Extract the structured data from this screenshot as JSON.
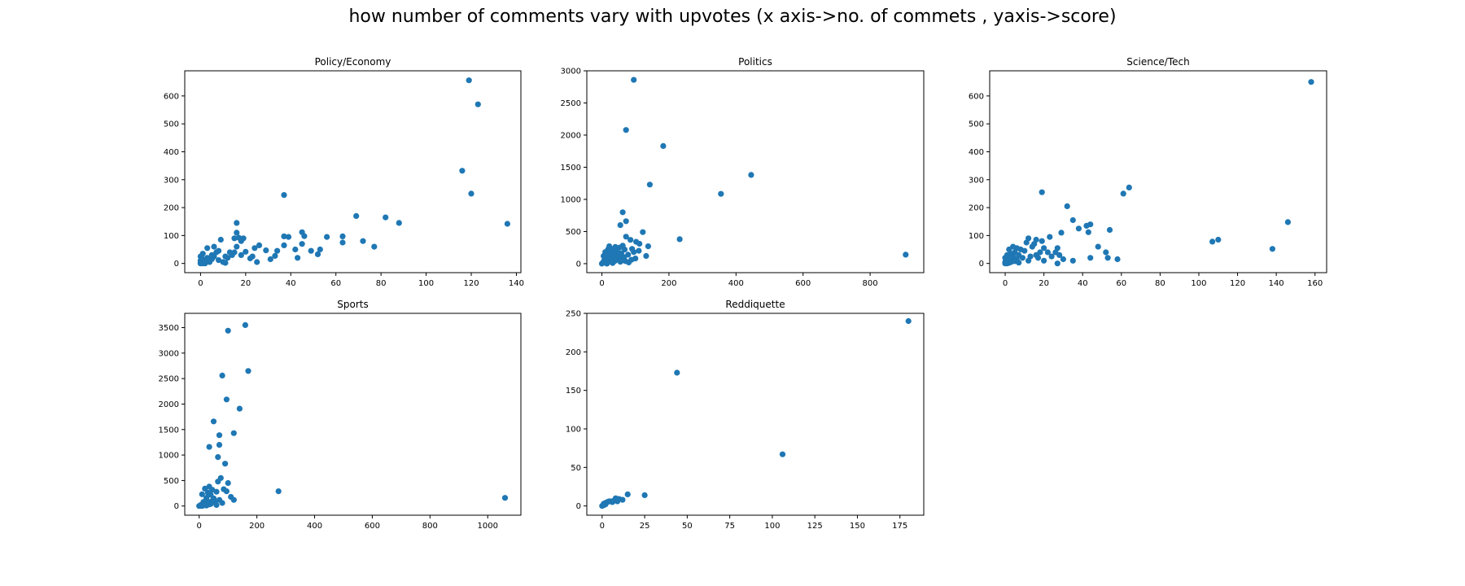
{
  "figure": {
    "title": "how number of comments vary with upvotes (x axis->no. of commets , yaxis->score)"
  },
  "colors": {
    "marker": "#1f77b4",
    "axis": "#000000",
    "background": "#ffffff"
  },
  "chart_data": [
    {
      "type": "scatter",
      "title": "Policy/Economy",
      "xlabel": "",
      "ylabel": "",
      "xlim": [
        -7,
        142
      ],
      "ylim": [
        -33,
        690
      ],
      "xticks": [
        0,
        20,
        40,
        60,
        80,
        100,
        120,
        140
      ],
      "yticks": [
        0,
        100,
        200,
        300,
        400,
        500,
        600
      ],
      "grid": false,
      "legend": "none",
      "points": [
        [
          119,
          656
        ],
        [
          123,
          570
        ],
        [
          116,
          332
        ],
        [
          120,
          250
        ],
        [
          136,
          142
        ],
        [
          37,
          245
        ],
        [
          82,
          165
        ],
        [
          88,
          145
        ],
        [
          69,
          170
        ],
        [
          72,
          80
        ],
        [
          77,
          60
        ],
        [
          63,
          97
        ],
        [
          63,
          75
        ],
        [
          56,
          95
        ],
        [
          53,
          50
        ],
        [
          52,
          33
        ],
        [
          49,
          45
        ],
        [
          46,
          98
        ],
        [
          45,
          112
        ],
        [
          45,
          70
        ],
        [
          43,
          20
        ],
        [
          42,
          50
        ],
        [
          39,
          95
        ],
        [
          37,
          97
        ],
        [
          37,
          65
        ],
        [
          34,
          45
        ],
        [
          33,
          27
        ],
        [
          31,
          15
        ],
        [
          29,
          47
        ],
        [
          26,
          65
        ],
        [
          25,
          5
        ],
        [
          24,
          55
        ],
        [
          23,
          25
        ],
        [
          22,
          18
        ],
        [
          20,
          42
        ],
        [
          19,
          90
        ],
        [
          18,
          80
        ],
        [
          18,
          30
        ],
        [
          17,
          92
        ],
        [
          16,
          145
        ],
        [
          16,
          110
        ],
        [
          16,
          60
        ],
        [
          15,
          90
        ],
        [
          15,
          40
        ],
        [
          14,
          30
        ],
        [
          13,
          40
        ],
        [
          12,
          20
        ],
        [
          11,
          25
        ],
        [
          10,
          5
        ],
        [
          9,
          85
        ],
        [
          8,
          45
        ],
        [
          7,
          40
        ],
        [
          6,
          60
        ],
        [
          6,
          25
        ],
        [
          5,
          15
        ],
        [
          4,
          5
        ],
        [
          3,
          55
        ],
        [
          3,
          20
        ],
        [
          2,
          10
        ],
        [
          2,
          0
        ],
        [
          1,
          35
        ],
        [
          1,
          15
        ],
        [
          1,
          5
        ],
        [
          0,
          25
        ],
        [
          0,
          10
        ],
        [
          0,
          2
        ],
        [
          0,
          0
        ],
        [
          1,
          0
        ],
        [
          2,
          3
        ],
        [
          3,
          8
        ],
        [
          5,
          30
        ],
        [
          8,
          12
        ],
        [
          11,
          2
        ]
      ]
    },
    {
      "type": "scatter",
      "title": "Politics",
      "xlabel": "",
      "ylabel": "",
      "xlim": [
        -45,
        960
      ],
      "ylim": [
        -140,
        3000
      ],
      "xticks": [
        0,
        200,
        400,
        600,
        800
      ],
      "yticks": [
        0,
        500,
        1000,
        1500,
        2000,
        2500,
        3000
      ],
      "grid": false,
      "legend": "none",
      "points": [
        [
          95,
          2860
        ],
        [
          72,
          2080
        ],
        [
          183,
          1830
        ],
        [
          143,
          1230
        ],
        [
          445,
          1380
        ],
        [
          355,
          1085
        ],
        [
          906,
          140
        ],
        [
          232,
          380
        ],
        [
          62,
          800
        ],
        [
          72,
          660
        ],
        [
          55,
          600
        ],
        [
          122,
          490
        ],
        [
          72,
          420
        ],
        [
          85,
          370
        ],
        [
          102,
          340
        ],
        [
          112,
          310
        ],
        [
          138,
          270
        ],
        [
          132,
          120
        ],
        [
          90,
          230
        ],
        [
          95,
          180
        ],
        [
          68,
          220
        ],
        [
          62,
          280
        ],
        [
          52,
          250
        ],
        [
          45,
          200
        ],
        [
          40,
          260
        ],
        [
          35,
          230
        ],
        [
          30,
          180
        ],
        [
          25,
          140
        ],
        [
          22,
          270
        ],
        [
          18,
          220
        ],
        [
          15,
          170
        ],
        [
          12,
          120
        ],
        [
          10,
          90
        ],
        [
          8,
          60
        ],
        [
          6,
          40
        ],
        [
          4,
          20
        ],
        [
          2,
          10
        ],
        [
          0,
          0
        ],
        [
          5,
          120
        ],
        [
          10,
          180
        ],
        [
          20,
          60
        ],
        [
          30,
          100
        ],
        [
          40,
          80
        ],
        [
          50,
          120
        ],
        [
          60,
          60
        ],
        [
          70,
          40
        ],
        [
          80,
          20
        ],
        [
          100,
          80
        ],
        [
          42,
          150
        ],
        [
          55,
          30
        ],
        [
          48,
          60
        ],
        [
          38,
          40
        ],
        [
          28,
          30
        ],
        [
          18,
          50
        ],
        [
          14,
          90
        ],
        [
          24,
          100
        ],
        [
          34,
          130
        ],
        [
          44,
          110
        ],
        [
          58,
          160
        ],
        [
          66,
          100
        ],
        [
          78,
          140
        ],
        [
          88,
          60
        ],
        [
          110,
          200
        ],
        [
          15,
          0
        ],
        [
          32,
          10
        ]
      ]
    },
    {
      "type": "scatter",
      "title": "Science/Tech",
      "xlabel": "",
      "ylabel": "",
      "xlim": [
        -8,
        166
      ],
      "ylim": [
        -33,
        690
      ],
      "xticks": [
        0,
        20,
        40,
        60,
        80,
        100,
        120,
        140,
        160
      ],
      "yticks": [
        0,
        100,
        200,
        300,
        400,
        500,
        600
      ],
      "grid": false,
      "legend": "none",
      "points": [
        [
          158,
          650
        ],
        [
          64,
          272
        ],
        [
          61,
          250
        ],
        [
          19,
          255
        ],
        [
          32,
          205
        ],
        [
          146,
          148
        ],
        [
          138,
          52
        ],
        [
          110,
          85
        ],
        [
          107,
          78
        ],
        [
          44,
          140
        ],
        [
          42,
          135
        ],
        [
          35,
          155
        ],
        [
          38,
          125
        ],
        [
          43,
          112
        ],
        [
          54,
          120
        ],
        [
          48,
          60
        ],
        [
          52,
          40
        ],
        [
          53,
          20
        ],
        [
          58,
          15
        ],
        [
          44,
          20
        ],
        [
          35,
          10
        ],
        [
          29,
          110
        ],
        [
          26,
          40
        ],
        [
          27,
          55
        ],
        [
          28,
          30
        ],
        [
          27,
          0
        ],
        [
          23,
          95
        ],
        [
          22,
          40
        ],
        [
          20,
          55
        ],
        [
          19,
          80
        ],
        [
          18,
          40
        ],
        [
          17,
          20
        ],
        [
          16,
          85
        ],
        [
          15,
          70
        ],
        [
          14,
          60
        ],
        [
          13,
          25
        ],
        [
          12,
          10
        ],
        [
          11,
          75
        ],
        [
          10,
          45
        ],
        [
          9,
          20
        ],
        [
          8,
          50
        ],
        [
          7,
          30
        ],
        [
          6,
          55
        ],
        [
          6,
          15
        ],
        [
          5,
          40
        ],
        [
          4,
          60
        ],
        [
          4,
          25
        ],
        [
          3,
          35
        ],
        [
          3,
          10
        ],
        [
          2,
          50
        ],
        [
          2,
          20
        ],
        [
          1,
          30
        ],
        [
          1,
          10
        ],
        [
          0,
          5
        ],
        [
          0,
          20
        ],
        [
          0,
          0
        ],
        [
          1,
          0
        ],
        [
          2,
          2
        ],
        [
          3,
          5
        ],
        [
          5,
          8
        ],
        [
          7,
          3
        ],
        [
          20,
          10
        ],
        [
          24,
          25
        ],
        [
          30,
          15
        ],
        [
          12,
          90
        ],
        [
          16,
          30
        ]
      ]
    },
    {
      "type": "scatter",
      "title": "Sports",
      "xlabel": "",
      "ylabel": "",
      "xlim": [
        -50,
        1115
      ],
      "ylim": [
        -180,
        3780
      ],
      "xticks": [
        0,
        200,
        400,
        600,
        800,
        1000
      ],
      "yticks": [
        0,
        500,
        1000,
        1500,
        2000,
        2500,
        3000,
        3500
      ],
      "grid": false,
      "legend": "none",
      "points": [
        [
          160,
          3550
        ],
        [
          100,
          3440
        ],
        [
          170,
          2650
        ],
        [
          80,
          2560
        ],
        [
          95,
          2090
        ],
        [
          140,
          1910
        ],
        [
          50,
          1660
        ],
        [
          120,
          1430
        ],
        [
          70,
          1390
        ],
        [
          70,
          1200
        ],
        [
          35,
          1160
        ],
        [
          65,
          960
        ],
        [
          90,
          830
        ],
        [
          275,
          290
        ],
        [
          1060,
          160
        ],
        [
          75,
          550
        ],
        [
          65,
          480
        ],
        [
          100,
          450
        ],
        [
          35,
          380
        ],
        [
          45,
          320
        ],
        [
          85,
          330
        ],
        [
          95,
          290
        ],
        [
          60,
          280
        ],
        [
          20,
          340
        ],
        [
          30,
          260
        ],
        [
          40,
          220
        ],
        [
          10,
          230
        ],
        [
          50,
          150
        ],
        [
          70,
          120
        ],
        [
          110,
          180
        ],
        [
          120,
          120
        ],
        [
          25,
          160
        ],
        [
          15,
          80
        ],
        [
          5,
          20
        ],
        [
          0,
          0
        ],
        [
          20,
          40
        ],
        [
          30,
          60
        ],
        [
          40,
          40
        ],
        [
          55,
          80
        ],
        [
          80,
          60
        ],
        [
          45,
          100
        ],
        [
          35,
          30
        ],
        [
          25,
          10
        ],
        [
          12,
          5
        ],
        [
          8,
          0
        ],
        [
          60,
          20
        ],
        [
          28,
          100
        ],
        [
          18,
          20
        ]
      ]
    },
    {
      "type": "scatter",
      "title": "Reddiquette",
      "xlabel": "",
      "ylabel": "",
      "xlim": [
        -9,
        189
      ],
      "ylim": [
        -12,
        250
      ],
      "xticks": [
        0,
        25,
        50,
        75,
        100,
        125,
        150,
        175
      ],
      "yticks": [
        0,
        50,
        100,
        150,
        200,
        250
      ],
      "grid": false,
      "legend": "none",
      "points": [
        [
          180,
          240
        ],
        [
          44,
          173
        ],
        [
          106,
          67
        ],
        [
          15,
          15
        ],
        [
          25,
          14
        ],
        [
          10,
          9
        ],
        [
          8,
          10
        ],
        [
          12,
          8
        ],
        [
          5,
          6
        ],
        [
          6,
          5
        ],
        [
          3,
          5
        ],
        [
          2,
          4
        ],
        [
          1,
          3
        ],
        [
          1,
          1
        ],
        [
          0,
          0
        ],
        [
          2,
          2
        ],
        [
          4,
          6
        ],
        [
          7,
          7
        ],
        [
          9,
          6
        ]
      ]
    }
  ]
}
